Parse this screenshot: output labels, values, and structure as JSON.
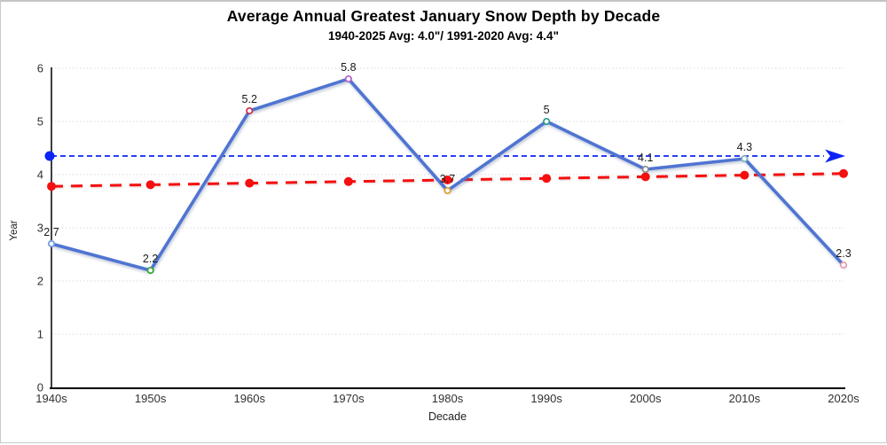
{
  "chart_data": {
    "type": "line",
    "title": "Average Annual Greatest January Snow Depth by Decade",
    "subtitle": "1940-2025 Avg: 4.0\"/ 1991-2020 Avg: 4.4\"",
    "xlabel": "Decade",
    "ylabel": "Year",
    "categories": [
      "1940s",
      "1950s",
      "1960s",
      "1970s",
      "1980s",
      "1990s",
      "2000s",
      "2010s",
      "2020s"
    ],
    "yticks": [
      0,
      1,
      2,
      3,
      4,
      5,
      6
    ],
    "ylim": [
      0,
      6
    ],
    "grid": "horizontal-dotted",
    "legend": "none",
    "series": [
      {
        "name": "snow-depth",
        "kind": "data",
        "values": [
          2.7,
          2.2,
          5.2,
          5.8,
          3.7,
          5,
          4.1,
          4.3,
          2.3
        ],
        "point_labels": [
          "2.7",
          "2.2",
          "5.2",
          "5.8",
          "3.7",
          "5",
          "4.1",
          "4.3",
          "2.3"
        ],
        "line_color": "#4f74d2",
        "marker_fill": "#ffffff",
        "marker_colors": [
          "#6f9ad8",
          "#2fa82f",
          "#d02f4c",
          "#b55fc6",
          "#e49a28",
          "#2a9d8f",
          "#8c8c8c",
          "#7fb0c0",
          "#e89cab"
        ]
      },
      {
        "name": "linear-trend",
        "kind": "trend",
        "start_value": 3.78,
        "end_value": 4.02,
        "line_color": "#f50f0f",
        "dot_color": "#f50f0f"
      },
      {
        "name": "avg-1991-2020-reference",
        "kind": "reference",
        "value": 4.4,
        "line_color": "#0b24f5",
        "endpoint_dot": "left",
        "arrow": "right"
      }
    ],
    "colors": {
      "axis": "#000000",
      "gridline": "#d9d9d9",
      "tick_text": "#303030",
      "data_label_text": "#1a1a1a"
    }
  }
}
